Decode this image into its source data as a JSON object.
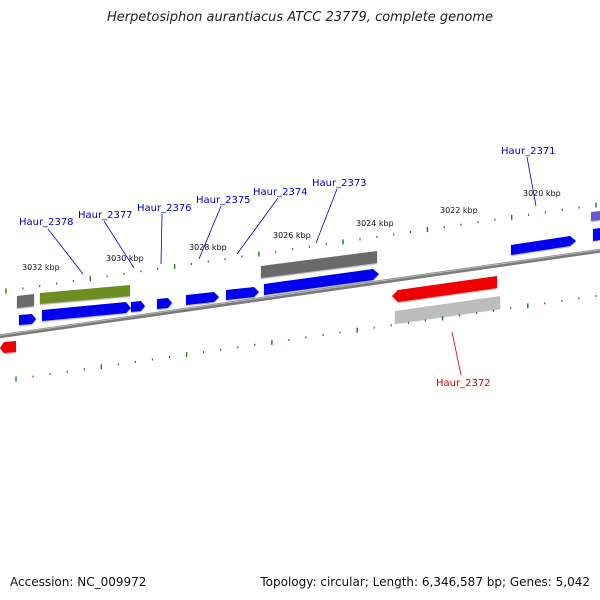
{
  "title": "Herpetosiphon aurantiacus ATCC 23779, complete genome",
  "footer": {
    "accession": "Accession: NC_009972",
    "summary": "Topology: circular; Length: 6,346,587 bp; Genes: 5,042"
  },
  "colors": {
    "forward_gene": "#0000ee",
    "reverse_gene": "#ee0000",
    "rna_gray": "#6a6a6a",
    "olive": "#6b8e23",
    "light_gray": "#bdbdbd",
    "tick_green": "#1f7a1f",
    "backbone": "#808080",
    "label_blue": "#0000bb",
    "label_red": "#cc0000"
  },
  "scale_labels": [
    "3032 kbp",
    "3030 kbp",
    "3028 kbp",
    "3026 kbp",
    "3024 kbp",
    "3022 kbp",
    "3020 kbp"
  ],
  "gene_labels": [
    {
      "text": "Haur_2378",
      "strand": "+"
    },
    {
      "text": "Haur_2377",
      "strand": "+"
    },
    {
      "text": "Haur_2376",
      "strand": "+"
    },
    {
      "text": "Haur_2375",
      "strand": "+"
    },
    {
      "text": "Haur_2374",
      "strand": "+"
    },
    {
      "text": "Haur_2373",
      "strand": "+"
    },
    {
      "text": "Haur_2371",
      "strand": "+"
    },
    {
      "text": "Haur_2372",
      "strand": "-"
    }
  ]
}
